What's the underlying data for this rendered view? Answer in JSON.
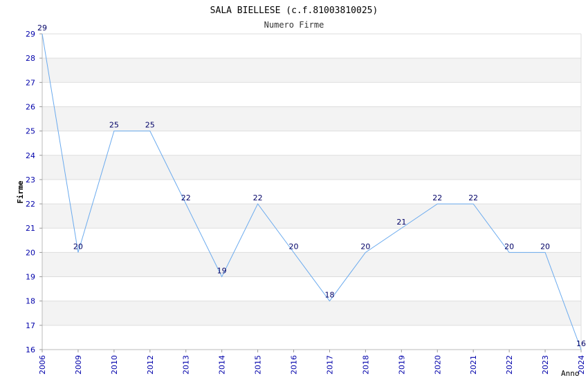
{
  "chart_data": {
    "type": "line",
    "title": "SALA BIELLESE (c.f.81003810025)",
    "subtitle": "Numero Firme",
    "xlabel": "Anno",
    "ylabel": "Firme",
    "categories": [
      "2006",
      "2009",
      "2010",
      "2012",
      "2013",
      "2014",
      "2015",
      "2016",
      "2017",
      "2018",
      "2019",
      "2020",
      "2021",
      "2022",
      "2023",
      "2024"
    ],
    "values": [
      29,
      20,
      25,
      25,
      22,
      19,
      22,
      20,
      18,
      20,
      21,
      22,
      22,
      20,
      20,
      16
    ],
    "ylim": [
      16,
      29
    ],
    "yticks": [
      16,
      17,
      18,
      19,
      20,
      21,
      22,
      23,
      24,
      25,
      26,
      27,
      28,
      29
    ],
    "grid": true,
    "colors": {
      "line": "#6aaaee",
      "band": "#f3f3f3",
      "grid": "#dddddd",
      "tick": "#0000aa",
      "data_label": "#000066"
    }
  }
}
